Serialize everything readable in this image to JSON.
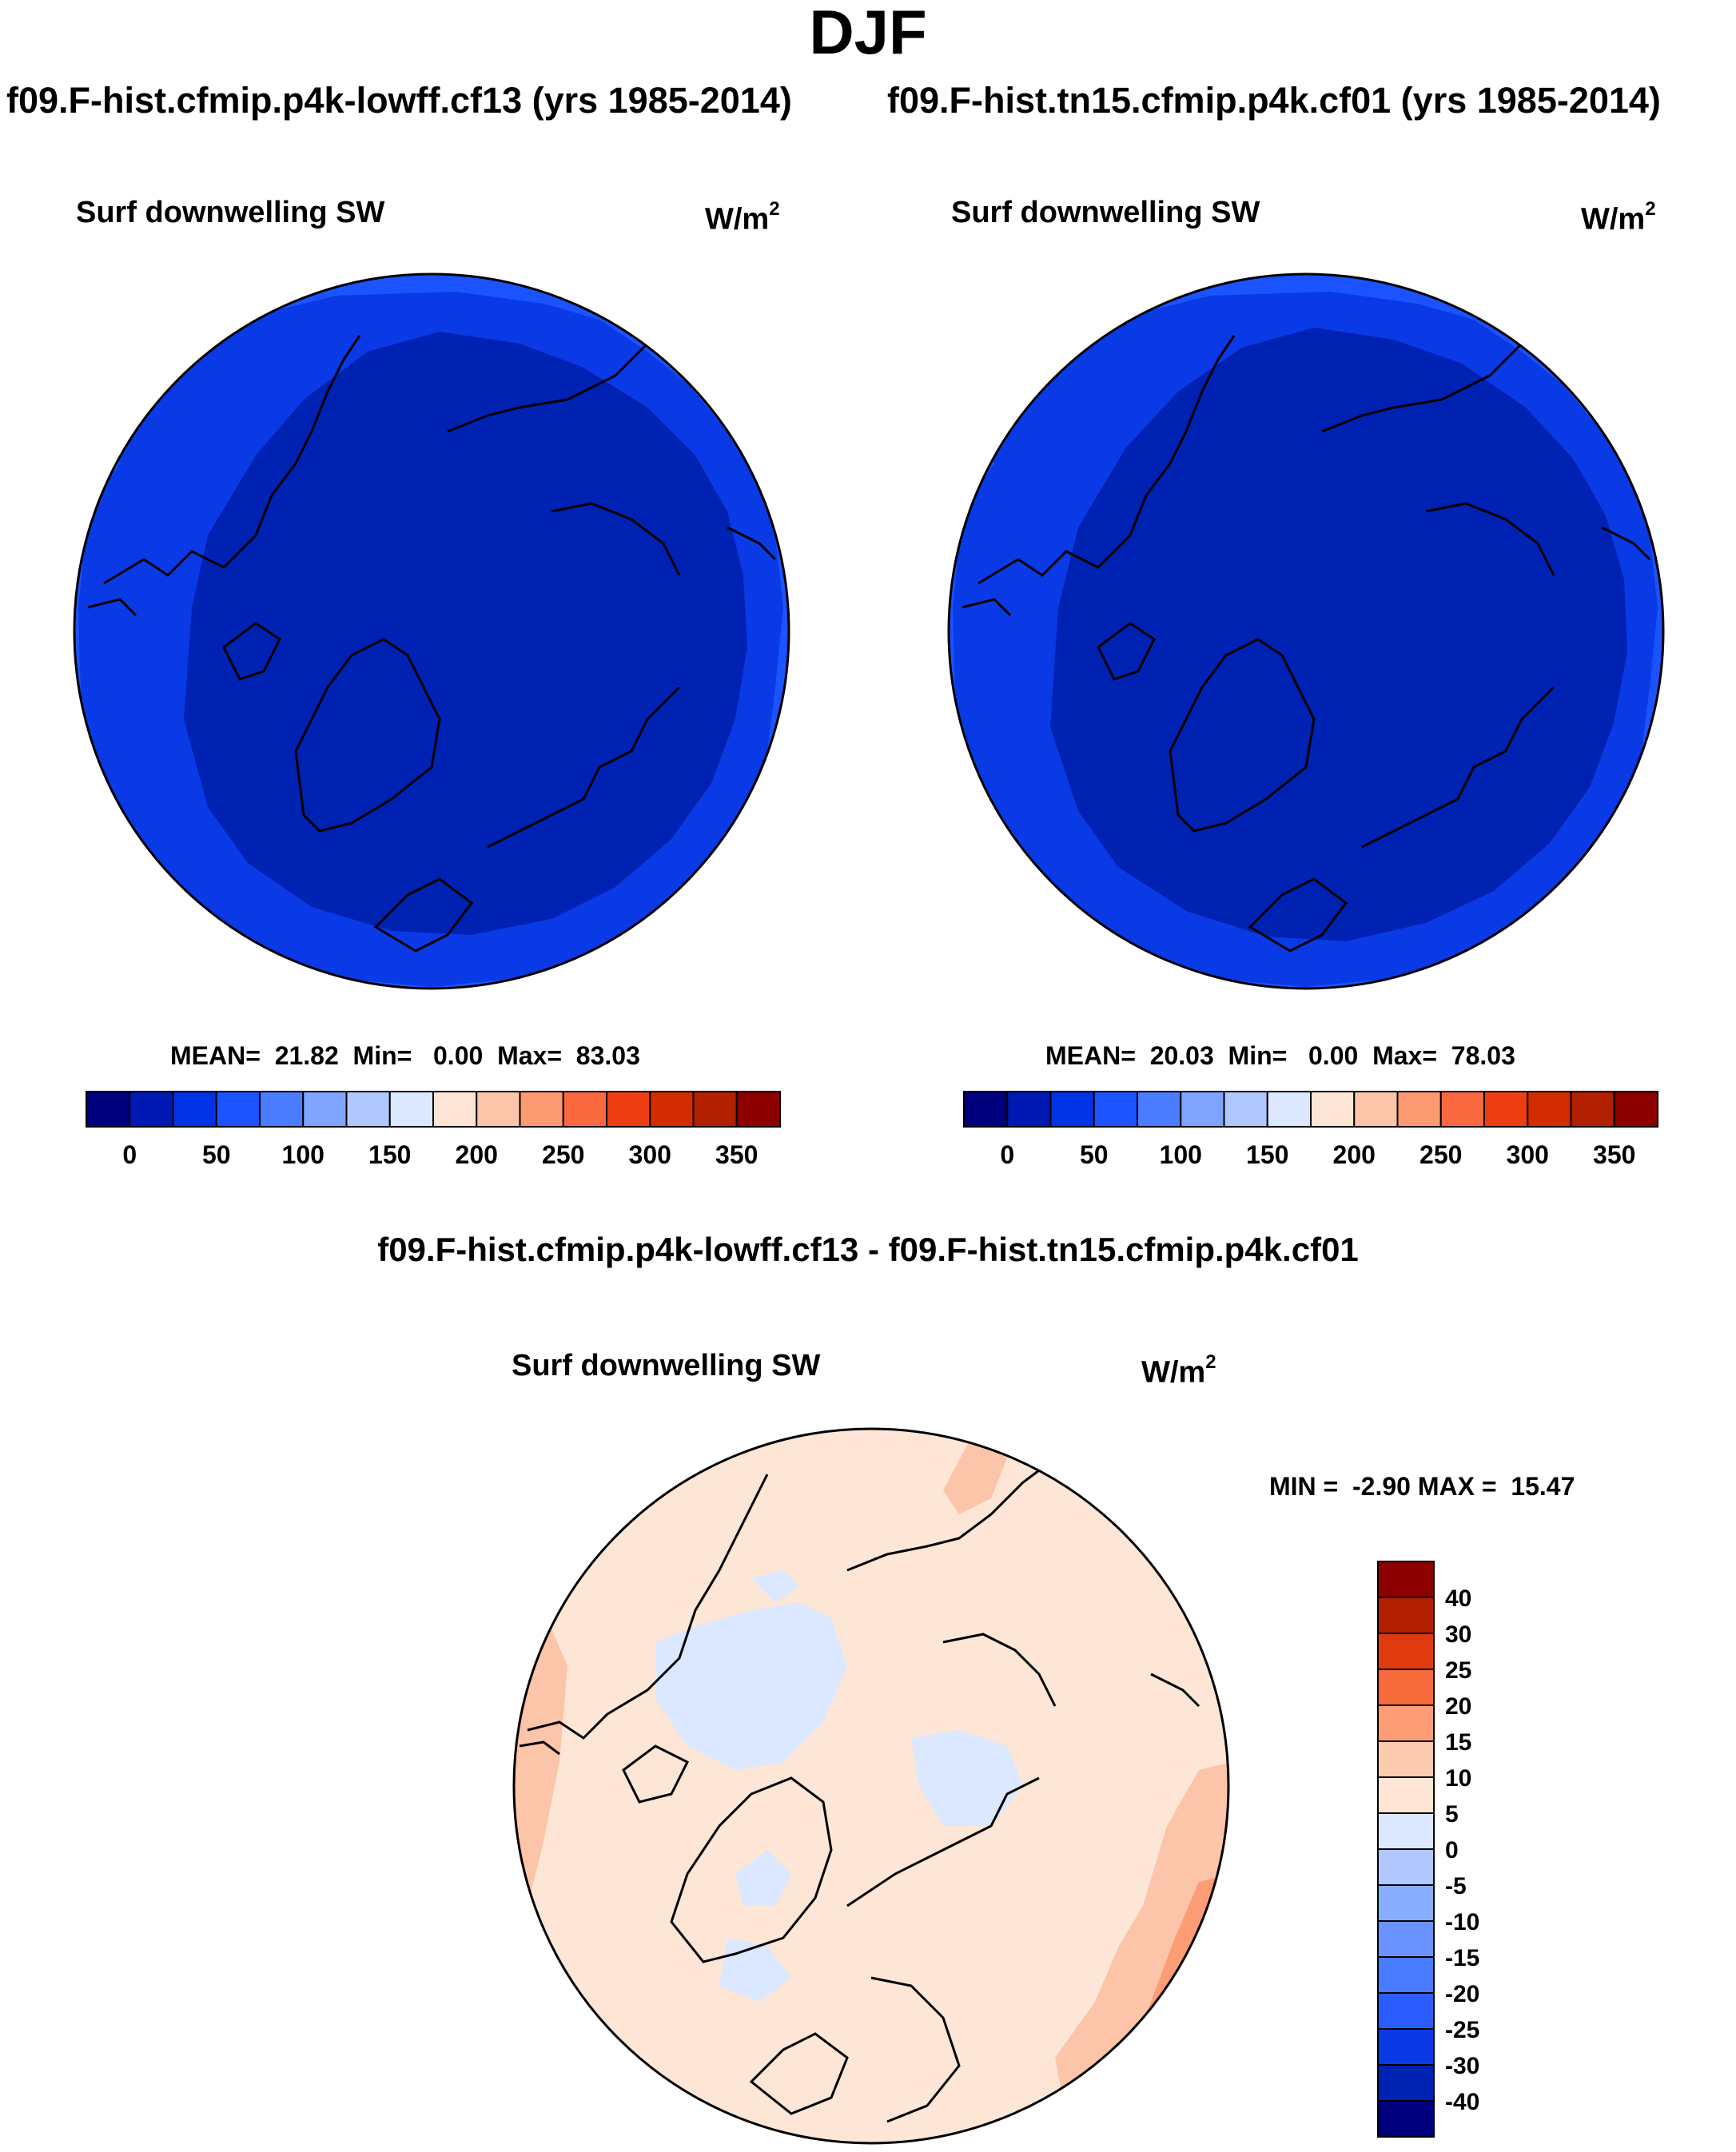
{
  "title": "DJF",
  "panels": [
    {
      "case": "f09.F-hist.cfmip.p4k-lowff.cf13 (yrs 1985-2014)",
      "variable": "Surf downwelling SW",
      "units_base": "W/m",
      "units_exp": "2",
      "stats": "MEAN=  21.82  Min=   0.00  Max=  83.03"
    },
    {
      "case": "f09.F-hist.tn15.cfmip.p4k.cf01 (yrs 1985-2014)",
      "variable": "Surf downwelling SW",
      "units_base": "W/m",
      "units_exp": "2",
      "stats": "MEAN=  20.03  Min=   0.00  Max=  78.03"
    }
  ],
  "colorbar": {
    "colors": [
      "#00007f",
      "#0019b3",
      "#0033e6",
      "#1a53ff",
      "#4a7cff",
      "#7ea4ff",
      "#b0c7ff",
      "#dbe8ff",
      "#fde5d6",
      "#fcc4a8",
      "#fc9a72",
      "#f9683f",
      "#ef3d12",
      "#d32c00",
      "#b22000",
      "#8c0000"
    ],
    "labels": [
      "0",
      "50",
      "100",
      "150",
      "200",
      "250",
      "300",
      "350"
    ]
  },
  "difference": {
    "title": "f09.F-hist.cfmip.p4k-lowff.cf13 - f09.F-hist.tn15.cfmip.p4k.cf01",
    "variable": "Surf downwelling SW",
    "units_base": "W/m",
    "units_exp": "2",
    "stats": "MIN =  -2.90 MAX =  15.47",
    "colorbar": {
      "colors": [
        "#8c0000",
        "#b22000",
        "#e03a10",
        "#f76a3c",
        "#fc9d76",
        "#fccbb0",
        "#fde6d6",
        "#dbe8ff",
        "#b0c7ff",
        "#8aaeff",
        "#6a93ff",
        "#4a7cff",
        "#2a5cff",
        "#0a3ae6",
        "#0022b3",
        "#00007f"
      ],
      "labels": [
        "40",
        "30",
        "25",
        "20",
        "15",
        "10",
        "5",
        "0",
        "-5",
        "-10",
        "-15",
        "-20",
        "-25",
        "-30",
        "-40"
      ]
    }
  }
}
